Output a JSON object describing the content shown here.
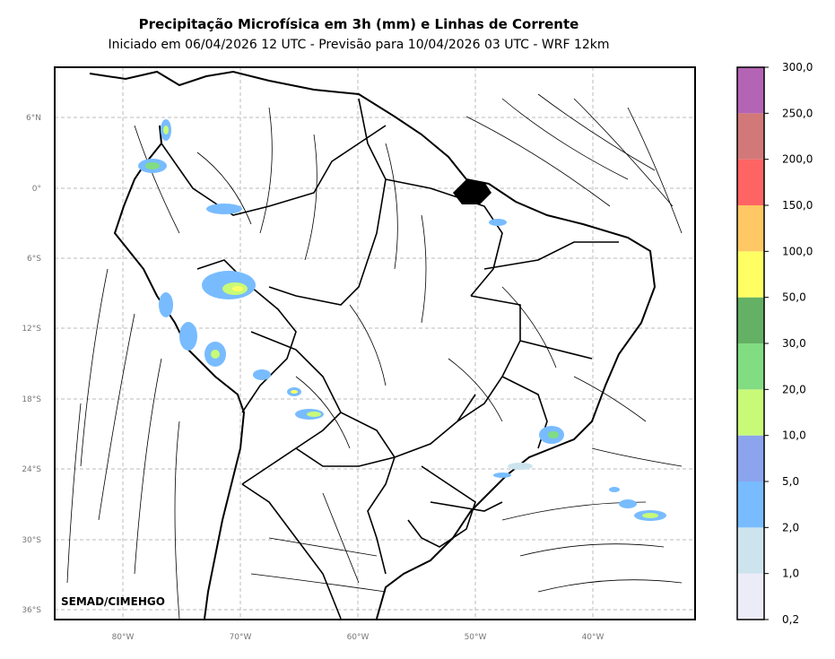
{
  "header": {
    "title": "Precipitação Microfísica em 3h (mm) e Linhas de Corrente",
    "subtitle": "Iniciado em 06/04/2026 12 UTC - Previsão para 10/04/2026 03 UTC - WRF 12km"
  },
  "map": {
    "lat_ticks": [
      "6°N",
      "0°",
      "6°S",
      "12°S",
      "18°S",
      "24°S",
      "30°S",
      "36°S"
    ],
    "lon_ticks": [
      "80°W",
      "70°W",
      "60°W",
      "50°W",
      "40°W"
    ],
    "credit": "SEMAD/CIMEHGO",
    "gridlines": true
  },
  "colorbar": {
    "labels": [
      "0,2",
      "1,0",
      "2,0",
      "5,0",
      "10,0",
      "20,0",
      "30,0",
      "50,0",
      "100,0",
      "150,0",
      "200,0",
      "250,0",
      "300,0"
    ],
    "colors": [
      "#ececf8",
      "#cde4ee",
      "#78bcff",
      "#8ca4ee",
      "#c8fa78",
      "#82dc82",
      "#64b064",
      "#ffff64",
      "#ffc864",
      "#ff6464",
      "#d27878",
      "#b464b4"
    ]
  }
}
